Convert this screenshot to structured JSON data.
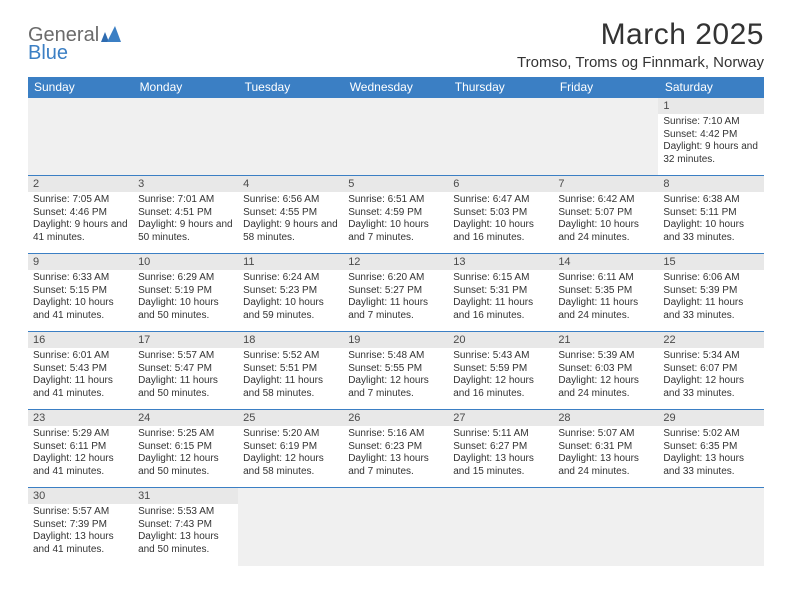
{
  "brand": {
    "part1": "General",
    "part2": "Blue"
  },
  "title": "March 2025",
  "location": "Tromso, Troms og Finnmark, Norway",
  "colors": {
    "header_bg": "#3b7fc4",
    "header_text": "#ffffff",
    "daybar_bg": "#e8e8e8",
    "empty_bg": "#f0f0f0",
    "border": "#3b7fc4",
    "text": "#333333"
  },
  "weekdays": [
    "Sunday",
    "Monday",
    "Tuesday",
    "Wednesday",
    "Thursday",
    "Friday",
    "Saturday"
  ],
  "weeks": [
    [
      {
        "blank": true
      },
      {
        "blank": true
      },
      {
        "blank": true
      },
      {
        "blank": true
      },
      {
        "blank": true
      },
      {
        "blank": true
      },
      {
        "day": "1",
        "sunrise": "Sunrise: 7:10 AM",
        "sunset": "Sunset: 4:42 PM",
        "daylight": "Daylight: 9 hours and 32 minutes."
      }
    ],
    [
      {
        "day": "2",
        "sunrise": "Sunrise: 7:05 AM",
        "sunset": "Sunset: 4:46 PM",
        "daylight": "Daylight: 9 hours and 41 minutes."
      },
      {
        "day": "3",
        "sunrise": "Sunrise: 7:01 AM",
        "sunset": "Sunset: 4:51 PM",
        "daylight": "Daylight: 9 hours and 50 minutes."
      },
      {
        "day": "4",
        "sunrise": "Sunrise: 6:56 AM",
        "sunset": "Sunset: 4:55 PM",
        "daylight": "Daylight: 9 hours and 58 minutes."
      },
      {
        "day": "5",
        "sunrise": "Sunrise: 6:51 AM",
        "sunset": "Sunset: 4:59 PM",
        "daylight": "Daylight: 10 hours and 7 minutes."
      },
      {
        "day": "6",
        "sunrise": "Sunrise: 6:47 AM",
        "sunset": "Sunset: 5:03 PM",
        "daylight": "Daylight: 10 hours and 16 minutes."
      },
      {
        "day": "7",
        "sunrise": "Sunrise: 6:42 AM",
        "sunset": "Sunset: 5:07 PM",
        "daylight": "Daylight: 10 hours and 24 minutes."
      },
      {
        "day": "8",
        "sunrise": "Sunrise: 6:38 AM",
        "sunset": "Sunset: 5:11 PM",
        "daylight": "Daylight: 10 hours and 33 minutes."
      }
    ],
    [
      {
        "day": "9",
        "sunrise": "Sunrise: 6:33 AM",
        "sunset": "Sunset: 5:15 PM",
        "daylight": "Daylight: 10 hours and 41 minutes."
      },
      {
        "day": "10",
        "sunrise": "Sunrise: 6:29 AM",
        "sunset": "Sunset: 5:19 PM",
        "daylight": "Daylight: 10 hours and 50 minutes."
      },
      {
        "day": "11",
        "sunrise": "Sunrise: 6:24 AM",
        "sunset": "Sunset: 5:23 PM",
        "daylight": "Daylight: 10 hours and 59 minutes."
      },
      {
        "day": "12",
        "sunrise": "Sunrise: 6:20 AM",
        "sunset": "Sunset: 5:27 PM",
        "daylight": "Daylight: 11 hours and 7 minutes."
      },
      {
        "day": "13",
        "sunrise": "Sunrise: 6:15 AM",
        "sunset": "Sunset: 5:31 PM",
        "daylight": "Daylight: 11 hours and 16 minutes."
      },
      {
        "day": "14",
        "sunrise": "Sunrise: 6:11 AM",
        "sunset": "Sunset: 5:35 PM",
        "daylight": "Daylight: 11 hours and 24 minutes."
      },
      {
        "day": "15",
        "sunrise": "Sunrise: 6:06 AM",
        "sunset": "Sunset: 5:39 PM",
        "daylight": "Daylight: 11 hours and 33 minutes."
      }
    ],
    [
      {
        "day": "16",
        "sunrise": "Sunrise: 6:01 AM",
        "sunset": "Sunset: 5:43 PM",
        "daylight": "Daylight: 11 hours and 41 minutes."
      },
      {
        "day": "17",
        "sunrise": "Sunrise: 5:57 AM",
        "sunset": "Sunset: 5:47 PM",
        "daylight": "Daylight: 11 hours and 50 minutes."
      },
      {
        "day": "18",
        "sunrise": "Sunrise: 5:52 AM",
        "sunset": "Sunset: 5:51 PM",
        "daylight": "Daylight: 11 hours and 58 minutes."
      },
      {
        "day": "19",
        "sunrise": "Sunrise: 5:48 AM",
        "sunset": "Sunset: 5:55 PM",
        "daylight": "Daylight: 12 hours and 7 minutes."
      },
      {
        "day": "20",
        "sunrise": "Sunrise: 5:43 AM",
        "sunset": "Sunset: 5:59 PM",
        "daylight": "Daylight: 12 hours and 16 minutes."
      },
      {
        "day": "21",
        "sunrise": "Sunrise: 5:39 AM",
        "sunset": "Sunset: 6:03 PM",
        "daylight": "Daylight: 12 hours and 24 minutes."
      },
      {
        "day": "22",
        "sunrise": "Sunrise: 5:34 AM",
        "sunset": "Sunset: 6:07 PM",
        "daylight": "Daylight: 12 hours and 33 minutes."
      }
    ],
    [
      {
        "day": "23",
        "sunrise": "Sunrise: 5:29 AM",
        "sunset": "Sunset: 6:11 PM",
        "daylight": "Daylight: 12 hours and 41 minutes."
      },
      {
        "day": "24",
        "sunrise": "Sunrise: 5:25 AM",
        "sunset": "Sunset: 6:15 PM",
        "daylight": "Daylight: 12 hours and 50 minutes."
      },
      {
        "day": "25",
        "sunrise": "Sunrise: 5:20 AM",
        "sunset": "Sunset: 6:19 PM",
        "daylight": "Daylight: 12 hours and 58 minutes."
      },
      {
        "day": "26",
        "sunrise": "Sunrise: 5:16 AM",
        "sunset": "Sunset: 6:23 PM",
        "daylight": "Daylight: 13 hours and 7 minutes."
      },
      {
        "day": "27",
        "sunrise": "Sunrise: 5:11 AM",
        "sunset": "Sunset: 6:27 PM",
        "daylight": "Daylight: 13 hours and 15 minutes."
      },
      {
        "day": "28",
        "sunrise": "Sunrise: 5:07 AM",
        "sunset": "Sunset: 6:31 PM",
        "daylight": "Daylight: 13 hours and 24 minutes."
      },
      {
        "day": "29",
        "sunrise": "Sunrise: 5:02 AM",
        "sunset": "Sunset: 6:35 PM",
        "daylight": "Daylight: 13 hours and 33 minutes."
      }
    ],
    [
      {
        "day": "30",
        "sunrise": "Sunrise: 5:57 AM",
        "sunset": "Sunset: 7:39 PM",
        "daylight": "Daylight: 13 hours and 41 minutes."
      },
      {
        "day": "31",
        "sunrise": "Sunrise: 5:53 AM",
        "sunset": "Sunset: 7:43 PM",
        "daylight": "Daylight: 13 hours and 50 minutes."
      },
      {
        "blank": true
      },
      {
        "blank": true
      },
      {
        "blank": true
      },
      {
        "blank": true
      },
      {
        "blank": true
      }
    ]
  ]
}
